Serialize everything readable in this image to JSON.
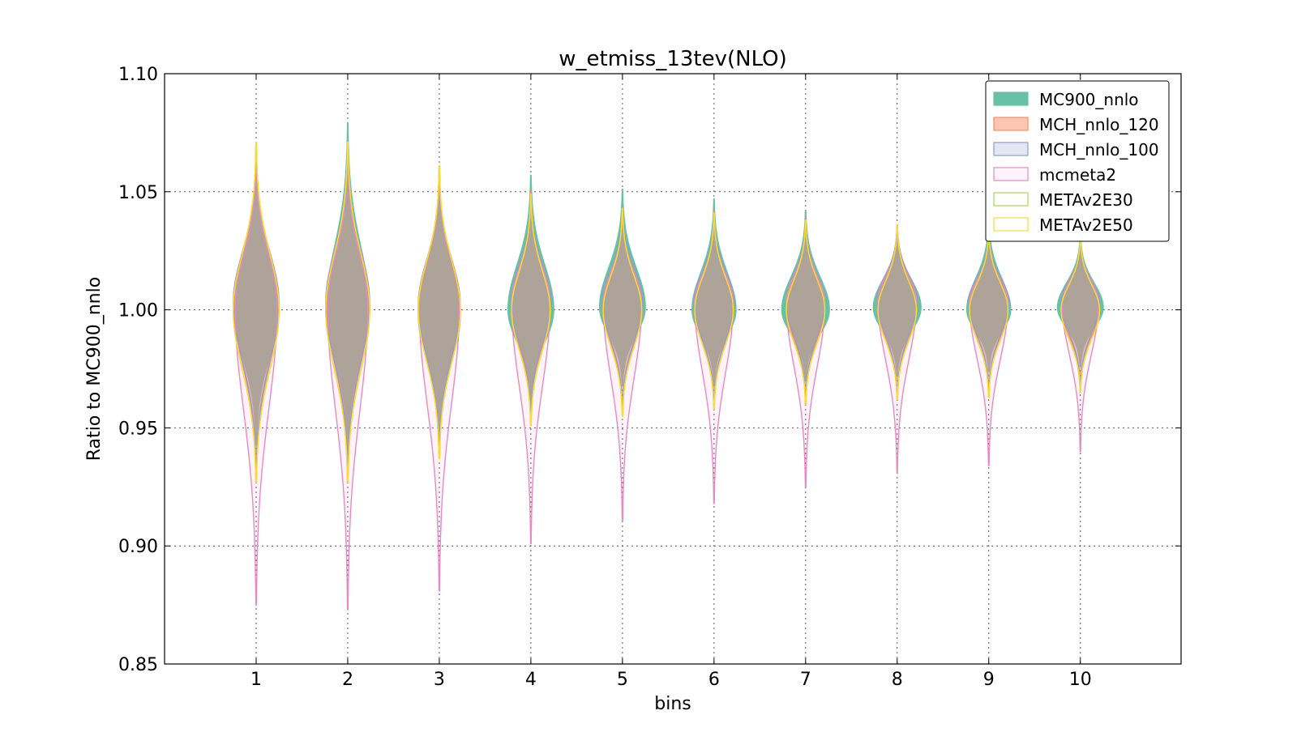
{
  "chart_data": {
    "type": "violin",
    "title": "w_etmiss_13tev(NLO)",
    "xlabel": "bins",
    "ylabel": "Ratio to MC900_nnlo",
    "ylim": [
      0.85,
      1.1
    ],
    "xlim": [
      0,
      11.1
    ],
    "yticks": [
      "0.85",
      "0.90",
      "0.95",
      "1.00",
      "1.05",
      "1.10"
    ],
    "categories": [
      "1",
      "2",
      "3",
      "4",
      "5",
      "6",
      "7",
      "8",
      "9",
      "10"
    ],
    "grid": true,
    "legend_position": "top-right",
    "series": [
      {
        "name": "MC900_nnlo",
        "fill": "#66c2a5",
        "stroke": "#66c2a5",
        "fill_opacity": 1.0,
        "min": [
          0.943,
          0.94,
          0.943,
          0.96,
          0.968,
          0.968,
          0.97,
          0.972,
          0.974,
          0.976
        ],
        "max": [
          1.07,
          1.079,
          1.06,
          1.057,
          1.051,
          1.047,
          1.042,
          1.036,
          1.039,
          1.032
        ],
        "center": [
          1.0,
          1.0,
          0.998,
          1.0,
          1.001,
          1.0,
          1.0,
          1.001,
          1.0,
          1.001
        ],
        "halfwidth": [
          0.25,
          0.24,
          0.23,
          0.25,
          0.25,
          0.24,
          0.26,
          0.26,
          0.24,
          0.25
        ]
      },
      {
        "name": "MCH_nnlo_120",
        "fill": "#fc8d62",
        "stroke": "#fc8d62",
        "fill_opacity": 0.5,
        "min": [
          0.93,
          0.93,
          0.94,
          0.955,
          0.958,
          0.96,
          0.962,
          0.962,
          0.965,
          0.967
        ],
        "max": [
          1.068,
          1.07,
          1.06,
          1.05,
          1.044,
          1.042,
          1.04,
          1.036,
          1.034,
          1.031
        ],
        "center": [
          1.001,
          1.001,
          1.0,
          1.001,
          1.001,
          1.001,
          1.001,
          1.002,
          1.001,
          1.001
        ],
        "halfwidth": [
          0.24,
          0.23,
          0.22,
          0.22,
          0.22,
          0.22,
          0.21,
          0.22,
          0.21,
          0.21
        ]
      },
      {
        "name": "MCH_nnlo_100",
        "fill": "#8da0cb",
        "stroke": "#8da0cb",
        "fill_opacity": 0.25,
        "min": [
          0.932,
          0.932,
          0.94,
          0.955,
          0.958,
          0.96,
          0.962,
          0.963,
          0.965,
          0.967
        ],
        "max": [
          1.067,
          1.069,
          1.059,
          1.049,
          1.044,
          1.041,
          1.039,
          1.035,
          1.034,
          1.03
        ],
        "center": [
          1.003,
          1.003,
          1.002,
          1.003,
          1.003,
          1.003,
          1.003,
          1.004,
          1.003,
          1.003
        ],
        "halfwidth": [
          0.25,
          0.24,
          0.23,
          0.22,
          0.22,
          0.22,
          0.21,
          0.22,
          0.22,
          0.21
        ]
      },
      {
        "name": "mcmeta2",
        "fill": "#e78ac3",
        "stroke": "#e78ac3",
        "fill_opacity": 0.1,
        "min": [
          0.875,
          0.873,
          0.881,
          0.901,
          0.911,
          0.918,
          0.925,
          0.931,
          0.934,
          0.94
        ],
        "max": [
          1.065,
          1.066,
          1.058,
          1.048,
          1.042,
          1.039,
          1.037,
          1.034,
          1.032,
          1.03
        ],
        "center": [
          1.002,
          1.002,
          1.002,
          1.003,
          1.003,
          1.003,
          1.003,
          1.004,
          1.003,
          1.003
        ],
        "halfwidth": [
          0.23,
          0.22,
          0.22,
          0.21,
          0.21,
          0.21,
          0.21,
          0.21,
          0.21,
          0.2
        ]
      },
      {
        "name": "METAv2E30",
        "fill": "#a6d854",
        "stroke": "#a6d854",
        "fill_opacity": 0.0,
        "min": [
          0.927,
          0.927,
          0.937,
          0.951,
          0.955,
          0.958,
          0.96,
          0.962,
          0.963,
          0.965
        ],
        "max": [
          1.07,
          1.071,
          1.061,
          1.049,
          1.043,
          1.041,
          1.038,
          1.036,
          1.034,
          1.031
        ],
        "center": [
          1.0,
          1.0,
          1.0,
          1.0,
          1.0,
          1.0,
          1.0,
          1.0,
          1.0,
          1.0
        ],
        "halfwidth": [
          0.25,
          0.24,
          0.23,
          0.21,
          0.21,
          0.21,
          0.21,
          0.21,
          0.21,
          0.21
        ]
      },
      {
        "name": "METAv2E50",
        "fill": "#ffd92f",
        "stroke": "#ffd92f",
        "fill_opacity": 0.0,
        "min": [
          0.927,
          0.927,
          0.937,
          0.951,
          0.955,
          0.958,
          0.96,
          0.962,
          0.963,
          0.965
        ],
        "max": [
          1.071,
          1.071,
          1.061,
          1.049,
          1.043,
          1.041,
          1.038,
          1.036,
          1.034,
          1.031
        ],
        "center": [
          1.0,
          1.0,
          1.0,
          1.0,
          1.0,
          1.0,
          1.0,
          1.0,
          1.0,
          1.0
        ],
        "halfwidth": [
          0.25,
          0.24,
          0.23,
          0.21,
          0.21,
          0.21,
          0.21,
          0.21,
          0.21,
          0.21
        ]
      }
    ]
  }
}
